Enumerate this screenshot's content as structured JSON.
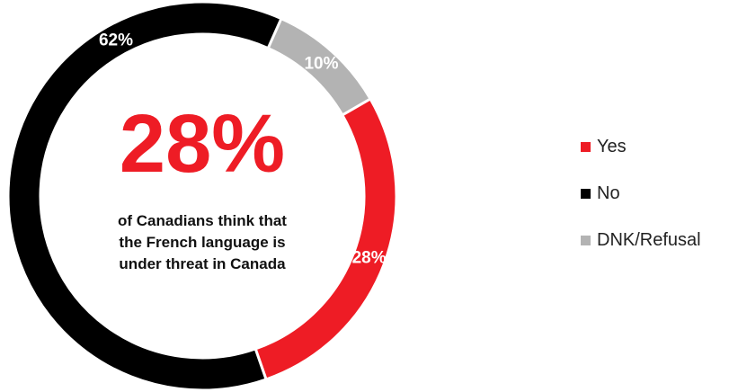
{
  "chart_data": {
    "type": "pie",
    "categories": [
      "Yes",
      "No",
      "DNK/Refusal"
    ],
    "values": [
      28,
      62,
      10
    ],
    "value_labels": [
      "28%",
      "62%",
      "10%"
    ],
    "colors": [
      "#ee1c25",
      "#000000",
      "#b3b3b3"
    ],
    "donut": true,
    "legend_position": "right",
    "center": {
      "headline": "28%",
      "text_lines": [
        "of Canadians think that",
        "the French language is",
        "under threat in Canada"
      ]
    }
  }
}
